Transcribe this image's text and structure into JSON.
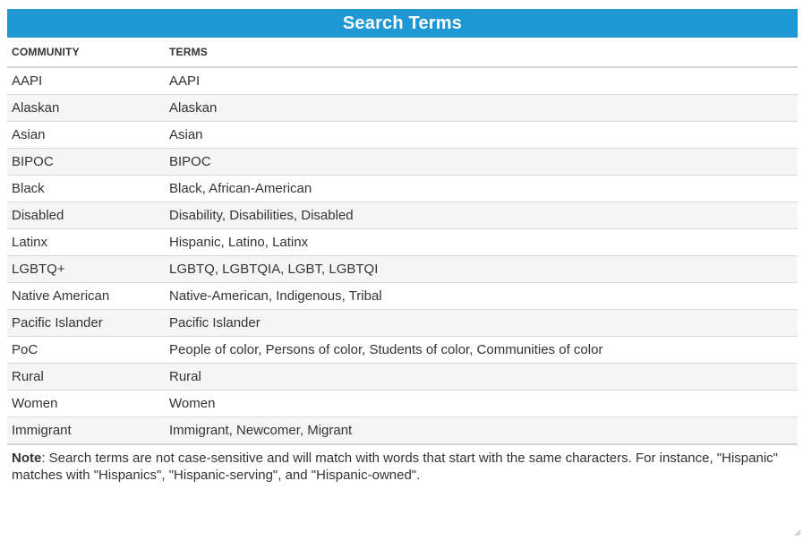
{
  "title": "Search Terms",
  "columns": {
    "community": "COMMUNITY",
    "terms": "TERMS"
  },
  "rows": [
    {
      "community": "AAPI",
      "terms": "AAPI"
    },
    {
      "community": "Alaskan",
      "terms": "Alaskan"
    },
    {
      "community": "Asian",
      "terms": "Asian"
    },
    {
      "community": "BIPOC",
      "terms": "BIPOC"
    },
    {
      "community": "Black",
      "terms": "Black, African-American"
    },
    {
      "community": "Disabled",
      "terms": "Disability, Disabilities, Disabled"
    },
    {
      "community": "Latinx",
      "terms": "Hispanic, Latino, Latinx"
    },
    {
      "community": "LGBTQ+",
      "terms": "LGBTQ, LGBTQIA, LGBT, LGBTQI"
    },
    {
      "community": "Native American",
      "terms": "Native-American, Indigenous, Tribal"
    },
    {
      "community": "Pacific Islander",
      "terms": "Pacific Islander"
    },
    {
      "community": "PoC",
      "terms": "People of color, Persons of color, Students of color, Communities of color"
    },
    {
      "community": "Rural",
      "terms": "Rural"
    },
    {
      "community": "Women",
      "terms": "Women"
    },
    {
      "community": "Immigrant",
      "terms": "Immigrant, Newcomer, Migrant"
    }
  ],
  "note": {
    "label": "Note",
    "text": ": Search terms are not case-sensitive and will match with words that start with the same characters. For instance, \"Hispanic\" matches with \"Hispanics\", \"Hispanic-serving\", and \"Hispanic-owned\"."
  },
  "colors": {
    "header_bar": "#1f97d4",
    "row_stripe": "#f5f5f5"
  },
  "icons": {
    "resize": "resize-grip-icon"
  }
}
